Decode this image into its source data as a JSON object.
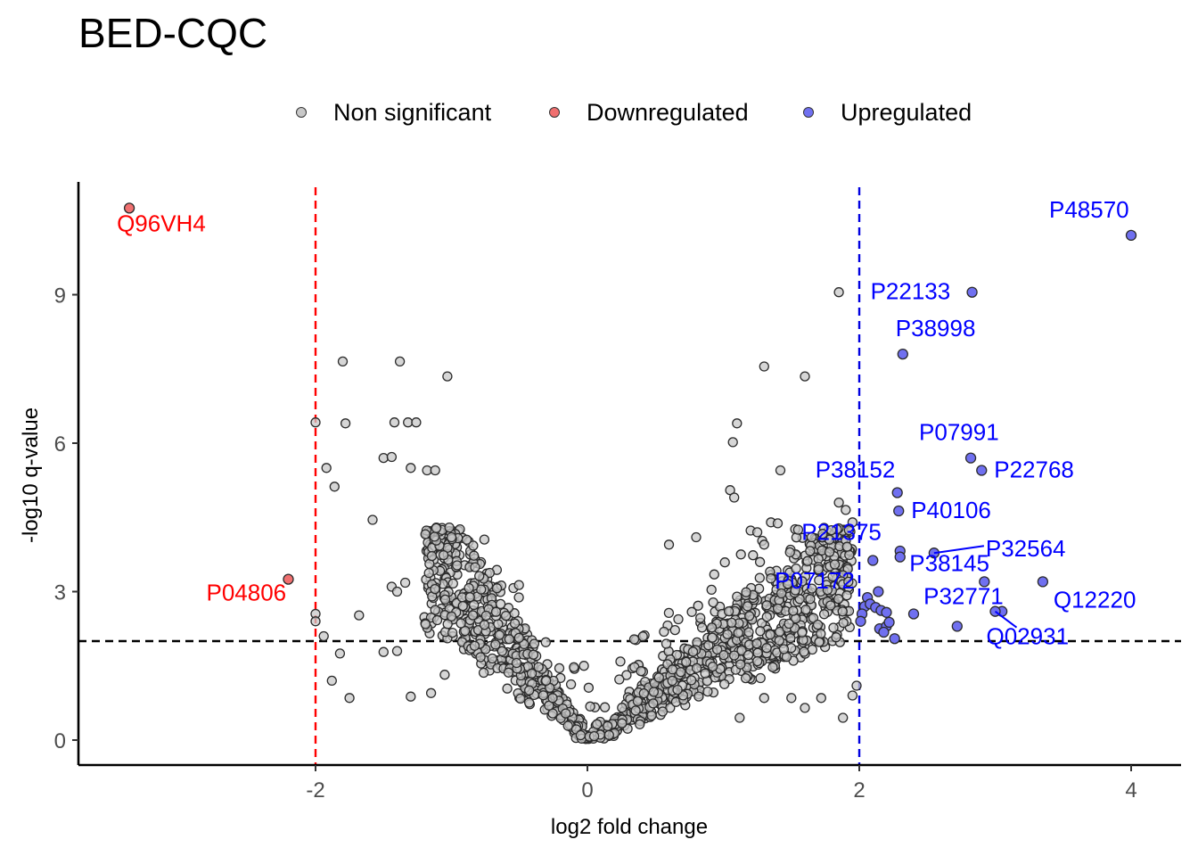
{
  "chart_data": {
    "type": "scatter",
    "title": "BED-CQC",
    "xlabel": "log2 fold change",
    "ylabel": "-log10 q-value",
    "xlim": [
      -3.7,
      4.35
    ],
    "ylim": [
      -0.5,
      11.3
    ],
    "x_ticks": [
      -2,
      0,
      2,
      4
    ],
    "x_tick_labels": [
      "-2",
      "0",
      "2",
      "4"
    ],
    "y_ticks": [
      0,
      3,
      6,
      9
    ],
    "y_tick_labels": [
      "0",
      "3",
      "6",
      "9"
    ],
    "thresholds": {
      "fold_change": [
        -2,
        2
      ],
      "q_value": 2
    },
    "colors": {
      "nonsignificant": "#c8c8c8",
      "downregulated": "#f07070",
      "upregulated": "#7070f0",
      "down_line": "#ff0000",
      "up_line": "#0000e0",
      "q_line": "#000000",
      "down_label": "#ff0000",
      "up_label": "#0000ff"
    },
    "legend": {
      "position": "top",
      "items": [
        {
          "label": "Non significant",
          "color": "#c8c8c8"
        },
        {
          "label": "Downregulated",
          "color": "#f07070"
        },
        {
          "label": "Upregulated",
          "color": "#7070f0"
        }
      ]
    },
    "series": [
      {
        "name": "Downregulated",
        "points": [
          {
            "x": -3.37,
            "y": 10.75,
            "label": "Q96VH4"
          },
          {
            "x": -2.2,
            "y": 3.25,
            "label": "P04806"
          }
        ]
      },
      {
        "name": "Upregulated",
        "points": [
          {
            "x": 4.0,
            "y": 10.2,
            "label": "P48570"
          },
          {
            "x": 2.83,
            "y": 9.05,
            "label": "P22133"
          },
          {
            "x": 2.32,
            "y": 7.8,
            "label": "P38998"
          },
          {
            "x": 2.82,
            "y": 5.7,
            "label": "P07991"
          },
          {
            "x": 2.9,
            "y": 5.45,
            "label": "P22768"
          },
          {
            "x": 2.28,
            "y": 5.0,
            "label": "P38152"
          },
          {
            "x": 2.29,
            "y": 4.63,
            "label": "P40106"
          },
          {
            "x": 2.55,
            "y": 3.78,
            "label": "P32564"
          },
          {
            "x": 2.1,
            "y": 3.63,
            "label": "P21375"
          },
          {
            "x": 2.06,
            "y": 2.88,
            "label": "P07172"
          },
          {
            "x": 2.92,
            "y": 3.2,
            "label": "P38145"
          },
          {
            "x": 3.35,
            "y": 3.2,
            "label": "Q12220"
          },
          {
            "x": 3.05,
            "y": 2.6,
            "label": "P32771"
          },
          {
            "x": 3.0,
            "y": 2.6,
            "label": "Q02931"
          },
          {
            "x": 2.3,
            "y": 3.82
          },
          {
            "x": 2.3,
            "y": 3.7
          },
          {
            "x": 2.14,
            "y": 3.0
          },
          {
            "x": 2.04,
            "y": 2.7
          },
          {
            "x": 2.02,
            "y": 2.55
          },
          {
            "x": 2.08,
            "y": 2.75
          },
          {
            "x": 2.12,
            "y": 2.68
          },
          {
            "x": 2.16,
            "y": 2.62
          },
          {
            "x": 2.2,
            "y": 2.58
          },
          {
            "x": 2.15,
            "y": 2.25
          },
          {
            "x": 2.2,
            "y": 2.3
          },
          {
            "x": 2.18,
            "y": 2.18
          },
          {
            "x": 2.22,
            "y": 2.38
          },
          {
            "x": 2.26,
            "y": 2.05
          },
          {
            "x": 2.4,
            "y": 2.55
          },
          {
            "x": 2.72,
            "y": 2.3
          },
          {
            "x": 2.01,
            "y": 2.4
          }
        ]
      },
      {
        "name": "Non significant",
        "points": [
          {
            "x": 1.85,
            "y": 9.05
          },
          {
            "x": 1.3,
            "y": 7.55
          },
          {
            "x": 1.6,
            "y": 7.35
          },
          {
            "x": -1.8,
            "y": 7.65
          },
          {
            "x": -1.38,
            "y": 7.65
          },
          {
            "x": -1.03,
            "y": 7.35
          },
          {
            "x": -2.0,
            "y": 6.42
          },
          {
            "x": -1.78,
            "y": 6.4
          },
          {
            "x": -1.42,
            "y": 6.42
          },
          {
            "x": -1.32,
            "y": 6.42
          },
          {
            "x": -1.26,
            "y": 6.42
          },
          {
            "x": -1.5,
            "y": 5.7
          },
          {
            "x": -1.44,
            "y": 5.72
          },
          {
            "x": -1.3,
            "y": 5.5
          },
          {
            "x": -1.18,
            "y": 5.45
          },
          {
            "x": -1.12,
            "y": 5.45
          },
          {
            "x": -1.92,
            "y": 5.5
          },
          {
            "x": -1.86,
            "y": 5.12
          },
          {
            "x": -1.58,
            "y": 4.45
          },
          {
            "x": -1.94,
            "y": 2.1
          },
          {
            "x": -1.68,
            "y": 2.52
          },
          {
            "x": -1.82,
            "y": 1.75
          },
          {
            "x": -1.75,
            "y": 0.85
          },
          {
            "x": -1.88,
            "y": 1.2
          },
          {
            "x": -1.5,
            "y": 1.78
          },
          {
            "x": -1.4,
            "y": 1.8
          },
          {
            "x": -1.44,
            "y": 3.1
          },
          {
            "x": -1.4,
            "y": 3.0
          },
          {
            "x": -1.34,
            "y": 3.18
          },
          {
            "x": -1.3,
            "y": 0.88
          },
          {
            "x": -1.15,
            "y": 0.95
          },
          {
            "x": -1.0,
            "y": 2.5
          },
          {
            "x": -1.05,
            "y": 1.32
          },
          {
            "x": -2.0,
            "y": 2.55
          },
          {
            "x": -2.0,
            "y": 2.4
          },
          {
            "x": -1.0,
            "y": 4.1
          },
          {
            "x": 1.1,
            "y": 6.4
          },
          {
            "x": 1.07,
            "y": 6.02
          },
          {
            "x": 1.42,
            "y": 5.45
          },
          {
            "x": 1.05,
            "y": 5.05
          },
          {
            "x": 1.08,
            "y": 4.9
          },
          {
            "x": 1.85,
            "y": 4.8
          },
          {
            "x": 1.9,
            "y": 4.65
          },
          {
            "x": 1.95,
            "y": 4.4
          },
          {
            "x": 1.88,
            "y": 0.45
          },
          {
            "x": 1.72,
            "y": 0.85
          },
          {
            "x": 1.5,
            "y": 0.85
          },
          {
            "x": 1.12,
            "y": 0.45
          },
          {
            "x": 1.3,
            "y": 0.85
          },
          {
            "x": 1.6,
            "y": 0.65
          },
          {
            "x": 1.95,
            "y": 0.9
          },
          {
            "x": 1.98,
            "y": 1.1
          },
          {
            "x": 0.8,
            "y": 4.1
          },
          {
            "x": 0.6,
            "y": 3.95
          },
          {
            "x": 1.35,
            "y": 4.4
          },
          {
            "x": 1.4,
            "y": 4.38
          },
          {
            "x": 1.25,
            "y": 4.2
          },
          {
            "x": 1.3,
            "y": 3.95
          },
          {
            "x": 1.55,
            "y": 4.25
          },
          {
            "x": 1.65,
            "y": 4.1
          },
          {
            "x": 1.78,
            "y": 3.8
          },
          {
            "x": 1.82,
            "y": 3.55
          },
          {
            "x": 1.7,
            "y": 3.45
          },
          {
            "x": 1.92,
            "y": 3.2
          },
          {
            "x": 0.05,
            "y": 0.08
          },
          {
            "x": -0.05,
            "y": 0.1
          }
        ]
      }
    ]
  }
}
